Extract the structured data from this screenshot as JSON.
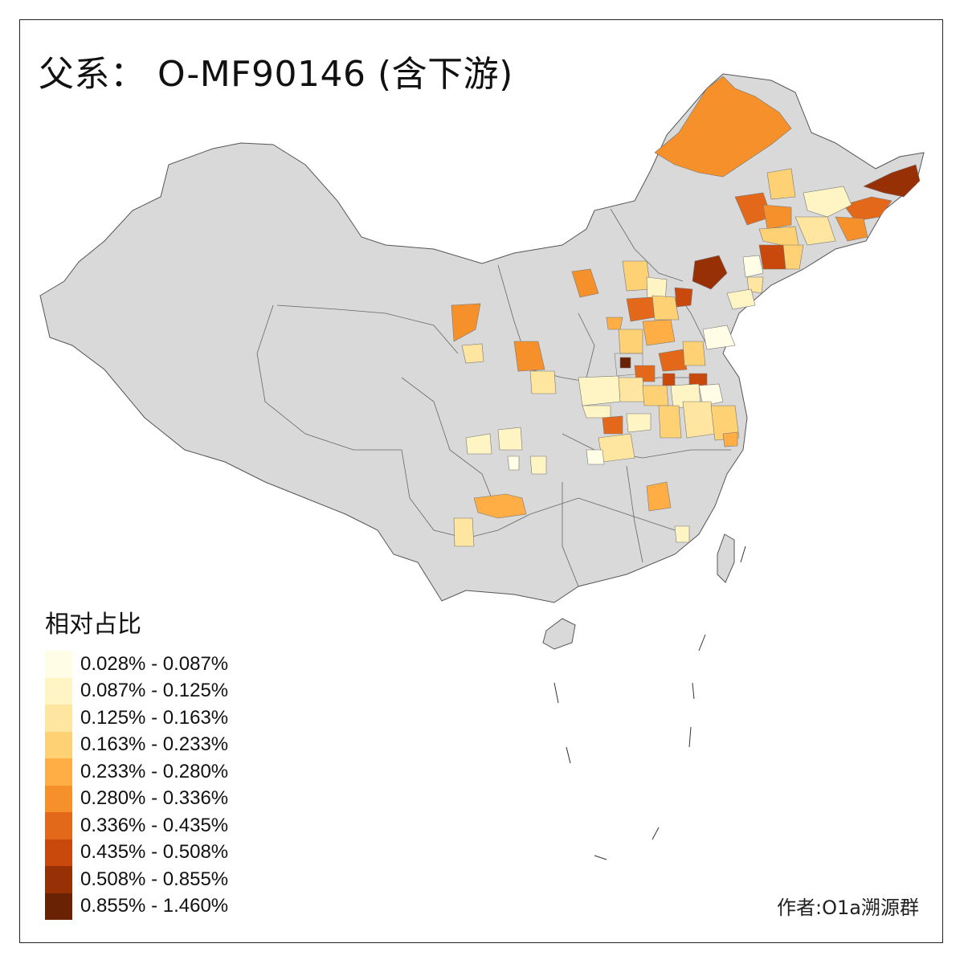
{
  "title": "父系： O-MF90146 (含下游)",
  "legend": {
    "title": "相对占比",
    "items": [
      {
        "label": "0.028% - 0.087%",
        "color": "#fffde6"
      },
      {
        "label": "0.087% - 0.125%",
        "color": "#fff4c4"
      },
      {
        "label": "0.125% - 0.163%",
        "color": "#fee6a0"
      },
      {
        "label": "0.163% - 0.233%",
        "color": "#fed175"
      },
      {
        "label": "0.233% - 0.280%",
        "color": "#feae45"
      },
      {
        "label": "0.280% - 0.336%",
        "color": "#f5902b"
      },
      {
        "label": "0.336% - 0.435%",
        "color": "#e3681a"
      },
      {
        "label": "0.435% - 0.508%",
        "color": "#c9480c"
      },
      {
        "label": "0.508% - 0.855%",
        "color": "#983006"
      },
      {
        "label": "0.855% - 1.460%",
        "color": "#6a2205"
      }
    ]
  },
  "author": "作者:O1a溯源群",
  "map": {
    "base_color": "#d9d9d9",
    "border_color": "#555555"
  }
}
